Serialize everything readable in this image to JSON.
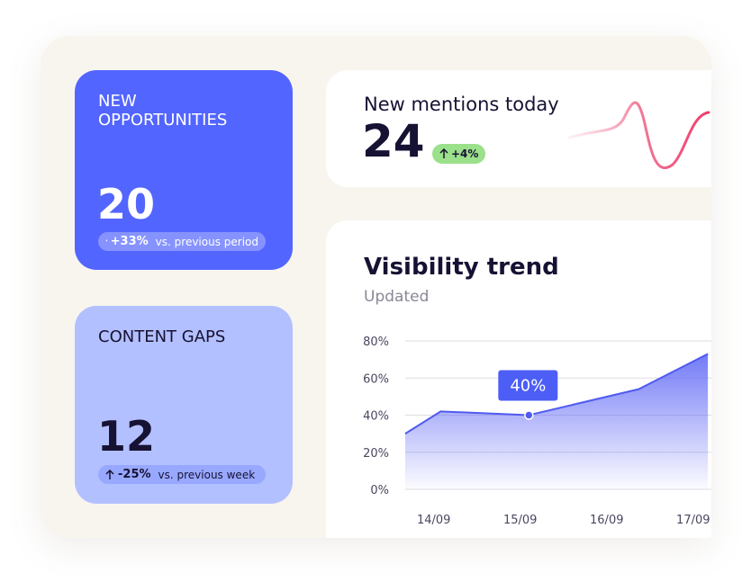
{
  "cards": [
    {
      "title": "NEW OPPORTUNITIES",
      "value": "20",
      "change": "+33%",
      "note": "vs. previous period"
    },
    {
      "title": "CONTENT GAPS",
      "value": "12",
      "change": "-25%",
      "note": "vs. previous week"
    }
  ],
  "mentions": {
    "title": "New mentions today",
    "value": "24",
    "change": "+4%"
  },
  "chart_data": {
    "type": "area",
    "title": "Visibility trend",
    "subtitle": "Updated",
    "xlim": [
      13.67,
      17.2
    ],
    "xticks": [
      {
        "value": 14,
        "label": "14/09"
      },
      {
        "value": 15,
        "label": "15/09"
      },
      {
        "value": 16,
        "label": "16/09"
      },
      {
        "value": 17,
        "label": "17/09"
      }
    ],
    "ylim": [
      0,
      80
    ],
    "yticks": [
      {
        "value": 0,
        "label": "0%"
      },
      {
        "value": 20,
        "label": "20%"
      },
      {
        "value": 40,
        "label": "40%"
      },
      {
        "value": 60,
        "label": "60%"
      },
      {
        "value": 80,
        "label": "80%"
      }
    ],
    "grid": true,
    "series": [
      {
        "name": "Visibility",
        "color": "#4f5bf0",
        "x": [
          13.67,
          14.08,
          15.1,
          16.37,
          17.17
        ],
        "values": [
          30,
          42,
          40,
          54,
          73
        ],
        "value_labels": [
          null,
          null,
          "40%",
          null,
          null
        ]
      }
    ]
  }
}
